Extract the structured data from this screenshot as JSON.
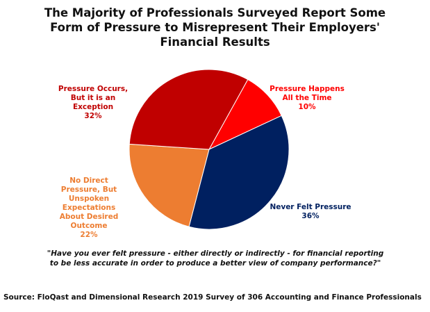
{
  "chart_data": {
    "type": "pie",
    "title": "The Majority of Professionals Surveyed Report Some Form of Pressure to Misrepresent Their Employers' Financial Results",
    "legend": "none (data labels next to slices)",
    "slices": [
      {
        "label": "Pressure Happens All the Time",
        "value": 10,
        "display": "10%",
        "color": "#ff0000"
      },
      {
        "label": "Never Felt Pressure",
        "value": 36,
        "display": "36%",
        "color": "#002060"
      },
      {
        "label": "No Direct Pressure, But Unspoken Expectations About Desired Outcome",
        "value": 22,
        "display": "22%",
        "color": "#ed7d31"
      },
      {
        "label": "Pressure Occurs, But it is an Exception",
        "value": 32,
        "display": "32%",
        "color": "#c00000"
      }
    ],
    "start_angle_deg": 29,
    "direction": "clockwise"
  },
  "quote": "\"Have you ever felt pressure - either directly or indirectly - for financial reporting to be less accurate in order to produce a better view of company performance?\"",
  "source": "Source: FloQast and Dimensional Research 2019 Survey of 306 Accounting and Finance Professionals"
}
